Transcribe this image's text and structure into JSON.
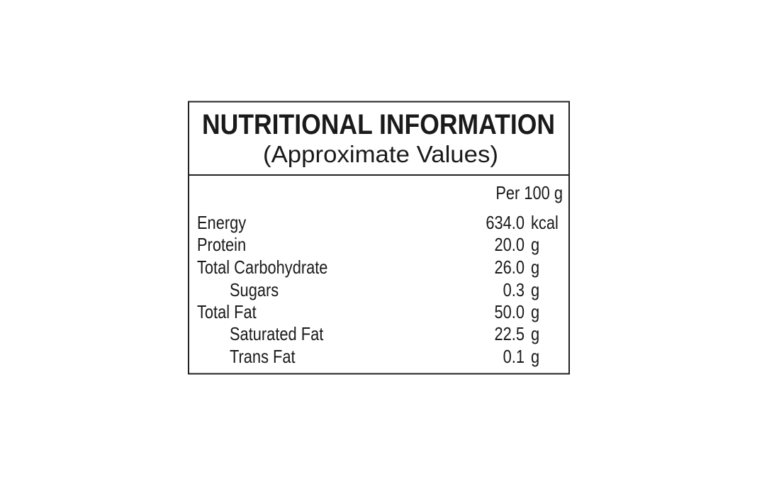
{
  "header": {
    "title": "NUTRITIONAL INFORMATION",
    "subtitle": "(Approximate Values)"
  },
  "table": {
    "column_header": "Per 100 g",
    "rows": [
      {
        "label": "Energy",
        "value": "634.0",
        "unit": "kcal",
        "indent": false
      },
      {
        "label": "Protein",
        "value": "20.0",
        "unit": "g",
        "indent": false
      },
      {
        "label": "Total Carbohydrate",
        "value": "26.0",
        "unit": "g",
        "indent": false
      },
      {
        "label": "Sugars",
        "value": "0.3",
        "unit": "g",
        "indent": true
      },
      {
        "label": "Total Fat",
        "value": "50.0",
        "unit": "g",
        "indent": false
      },
      {
        "label": "Saturated Fat",
        "value": "22.5",
        "unit": "g",
        "indent": true
      },
      {
        "label": "Trans Fat",
        "value": "0.1",
        "unit": "g",
        "indent": true
      }
    ]
  }
}
